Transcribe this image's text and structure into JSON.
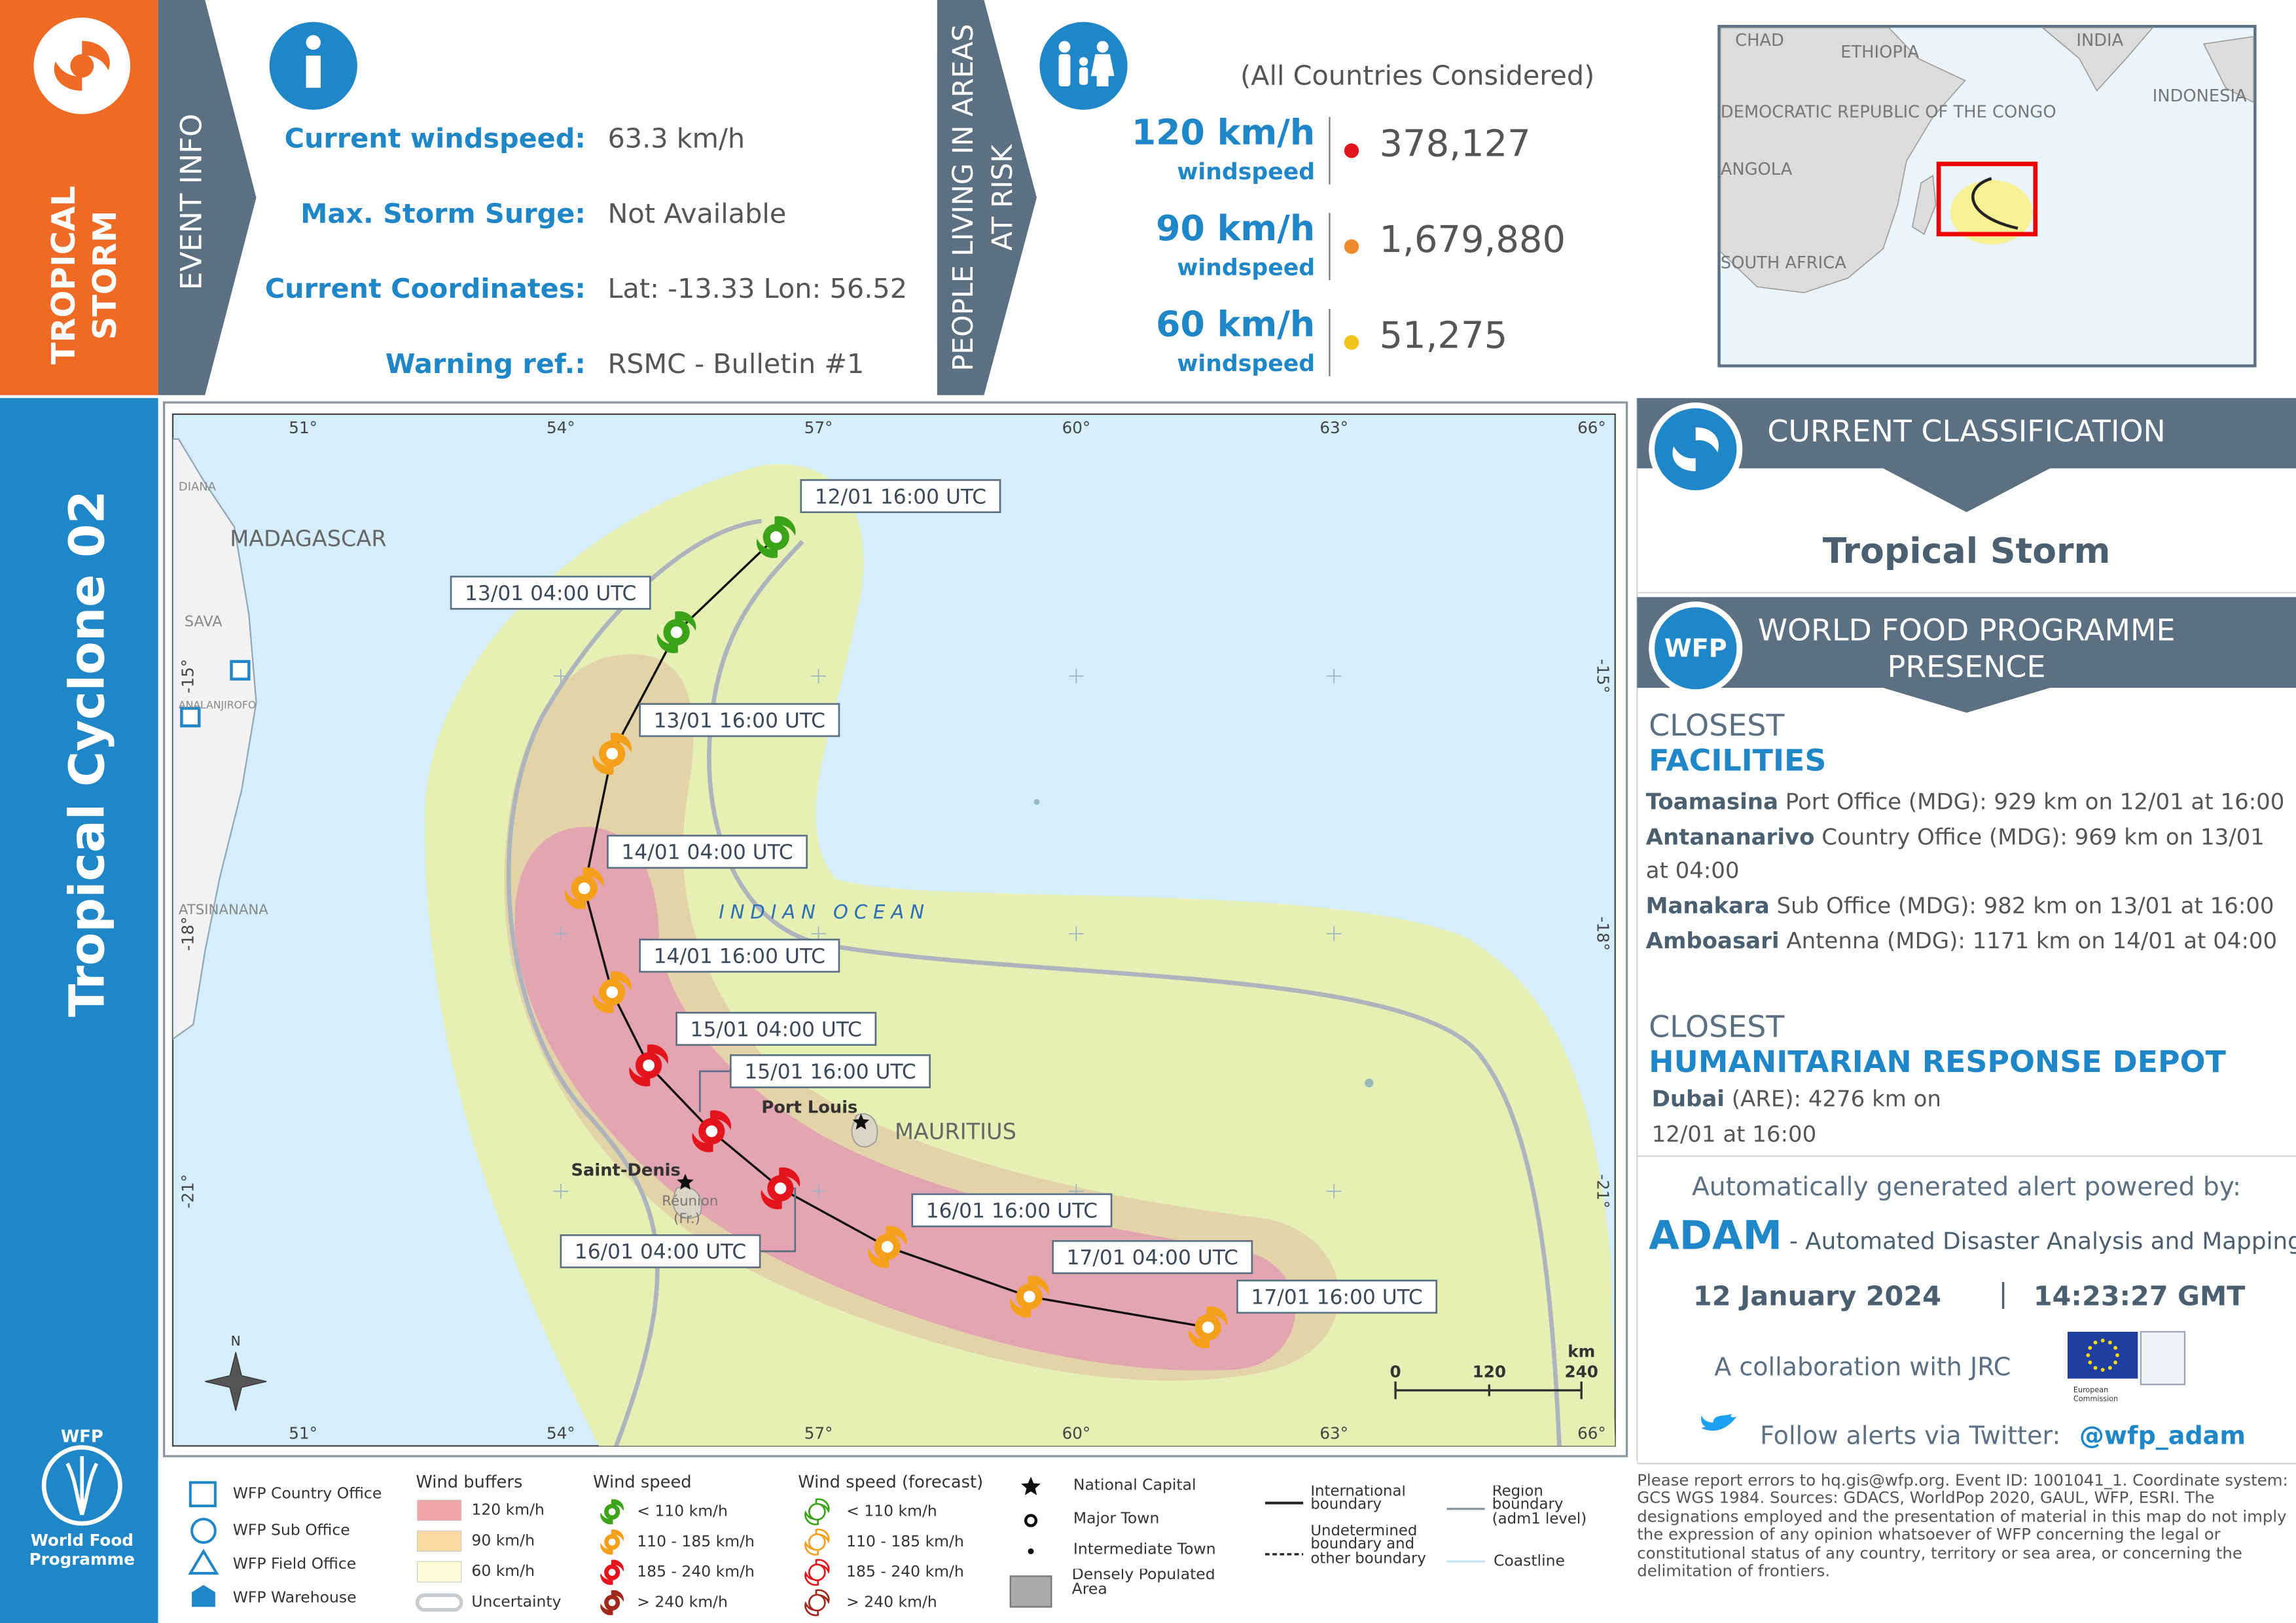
{
  "sidebar": {
    "category_lines": [
      "TROPICAL",
      "STORM"
    ],
    "event_name": "Tropical Cyclone 02",
    "org_lines": [
      "WFP",
      "World Food",
      "Programme"
    ]
  },
  "event_info": {
    "heading": "EVENT INFO",
    "rows": [
      {
        "label": "Current windspeed:",
        "value": "63.3 km/h"
      },
      {
        "label": "Max. Storm Surge:",
        "value": "Not Available"
      },
      {
        "label": "Current Coordinates:",
        "value": "Lat: -13.33 Lon: 56.52"
      },
      {
        "label": "Warning ref.:",
        "value": "RSMC - Bulletin #1"
      }
    ]
  },
  "population": {
    "heading_lines": [
      "PEOPLE LIVING IN AREAS",
      "AT RISK"
    ],
    "note": "(All Countries Considered)",
    "rows": [
      {
        "speed": "120 km/h",
        "unit": "windspeed",
        "count": "378,127",
        "color": "#e3141b"
      },
      {
        "speed": "90 km/h",
        "unit": "windspeed",
        "count": "1,679,880",
        "color": "#ec8a2c"
      },
      {
        "speed": "60 km/h",
        "unit": "windspeed",
        "count": "51,275",
        "color": "#f2c31b"
      }
    ]
  },
  "inset_map": {
    "labels": [
      "CHAD",
      "ETHIOPIA",
      "INDIA",
      "INDONESIA",
      "DEMOCRATIC REPUBLIC OF THE CONGO",
      "ANGOLA",
      "SOUTH AFRICA"
    ]
  },
  "map": {
    "lon_labels": [
      "51°",
      "54°",
      "57°",
      "60°",
      "63°",
      "66°"
    ],
    "lat_labels": [
      "-15°",
      "-18°",
      "-21°"
    ],
    "places": [
      "MADAGASCAR",
      "DIANA",
      "SAVA",
      "ANALANJIROFO",
      "ATSINANANA",
      "Port Louis",
      "MAURITIUS",
      "Saint-Denis",
      "Réunion",
      "(Fr.)"
    ],
    "ocean": "INDIAN OCEAN",
    "scale": {
      "ticks": [
        "0",
        "120",
        "240"
      ],
      "unit": "km"
    },
    "north": "N",
    "track": [
      {
        "time": "12/01 16:00 UTC",
        "color": "#3aa317"
      },
      {
        "time": "13/01 04:00 UTC",
        "color": "#3aa317"
      },
      {
        "time": "13/01 16:00 UTC",
        "color": "#f5a01a"
      },
      {
        "time": "14/01 04:00 UTC",
        "color": "#f5a01a"
      },
      {
        "time": "14/01 16:00 UTC",
        "color": "#f5a01a"
      },
      {
        "time": "15/01 04:00 UTC",
        "color": "#e3141b"
      },
      {
        "time": "15/01 16:00 UTC",
        "color": "#e3141b"
      },
      {
        "time": "16/01 04:00 UTC",
        "color": "#e3141b"
      },
      {
        "time": "16/01 16:00 UTC",
        "color": "#f5a01a"
      },
      {
        "time": "17/01 04:00 UTC",
        "color": "#f5a01a"
      },
      {
        "time": "17/01 16:00 UTC",
        "color": "#f5a01a"
      }
    ]
  },
  "classification": {
    "heading": "CURRENT CLASSIFICATION",
    "value": "Tropical Storm"
  },
  "wfp_presence": {
    "logo": "WFP",
    "heading_lines": [
      "WORLD FOOD PROGRAMME",
      "PRESENCE"
    ],
    "facilities_heading": [
      "CLOSEST",
      "FACILITIES"
    ],
    "facilities": [
      {
        "name": "Toamasina",
        "detail": "Port Office (MDG): 929 km on 12/01 at 16:00"
      },
      {
        "name": "Antananarivo",
        "detail": "Country Office (MDG): 969 km on 13/01 at 04:00"
      },
      {
        "name": "Manakara",
        "detail": "Sub Office (MDG): 982 km on 13/01 at 16:00"
      },
      {
        "name": "Amboasari",
        "detail": "Antenna (MDG): 1171 km on 14/01 at 04:00"
      }
    ],
    "depot_heading": [
      "CLOSEST",
      "HUMANITARIAN RESPONSE DEPOT"
    ],
    "depots": [
      {
        "name": "Dubai",
        "detail": "(ARE): 4276 km on 12/01 at 16:00"
      }
    ]
  },
  "adam": {
    "powered_by": "Automatically generated alert powered by:",
    "name": "ADAM",
    "full_name": "- Automated Disaster Analysis and Mapping",
    "date": "12 January 2024",
    "separator": "|",
    "time": "14:23:27 GMT",
    "collaboration": "A collaboration with JRC",
    "eu_label": [
      "European",
      "Commission"
    ],
    "twitter_text": "Follow alerts via Twitter:",
    "twitter_handle": "@wfp_adam"
  },
  "legend": {
    "facilities": [
      "WFP Country Office",
      "WFP Sub Office",
      "WFP Field Office",
      "WFP Warehouse"
    ],
    "wind_buffers": {
      "title": "Wind buffers",
      "items": [
        {
          "label": "120 km/h",
          "color": "#f4a3a8"
        },
        {
          "label": "90 km/h",
          "color": "#fcd9a0"
        },
        {
          "label": "60 km/h",
          "color": "#fdfbd7"
        },
        {
          "label": "Uncertainty",
          "color": "#c8cbd0"
        }
      ]
    },
    "wind_speed": {
      "title": "Wind speed",
      "items": [
        {
          "label": "< 110 km/h",
          "color": "#3aa317"
        },
        {
          "label": "110 - 185 km/h",
          "color": "#f5a01a"
        },
        {
          "label": "185 - 240 km/h",
          "color": "#e3141b"
        },
        {
          "label": "> 240 km/h",
          "color": "#a0281c"
        }
      ]
    },
    "wind_speed_forecast": {
      "title": "Wind speed (forecast)",
      "items": [
        {
          "label": "< 110 km/h",
          "color": "#3aa317"
        },
        {
          "label": "110 - 185 km/h",
          "color": "#f5a01a"
        },
        {
          "label": "185 - 240 km/h",
          "color": "#e3141b"
        },
        {
          "label": "> 240 km/h",
          "color": "#a0281c"
        }
      ]
    },
    "settlements": [
      "National Capital",
      "Major Town",
      "Intermediate Town",
      "Densely Populated Area"
    ],
    "boundaries": [
      "International boundary",
      "Undetermined boundary and other boundary",
      "Region boundary (adm1 level)",
      "Coastline"
    ]
  },
  "disclaimer": "Please report errors to hq.gis@wfp.org. Event ID: 1001041_1. Coordinate system: GCS WGS 1984. Sources: GDACS, WorldPop 2020, GAUL, WFP, ESRI. The designations employed and the presentation of material in this map do not imply the expression of any opinion whatsoever of WFP concerning the legal or constitutional status of any country, territory or sea area, or concerning the delimitation of frontiers."
}
